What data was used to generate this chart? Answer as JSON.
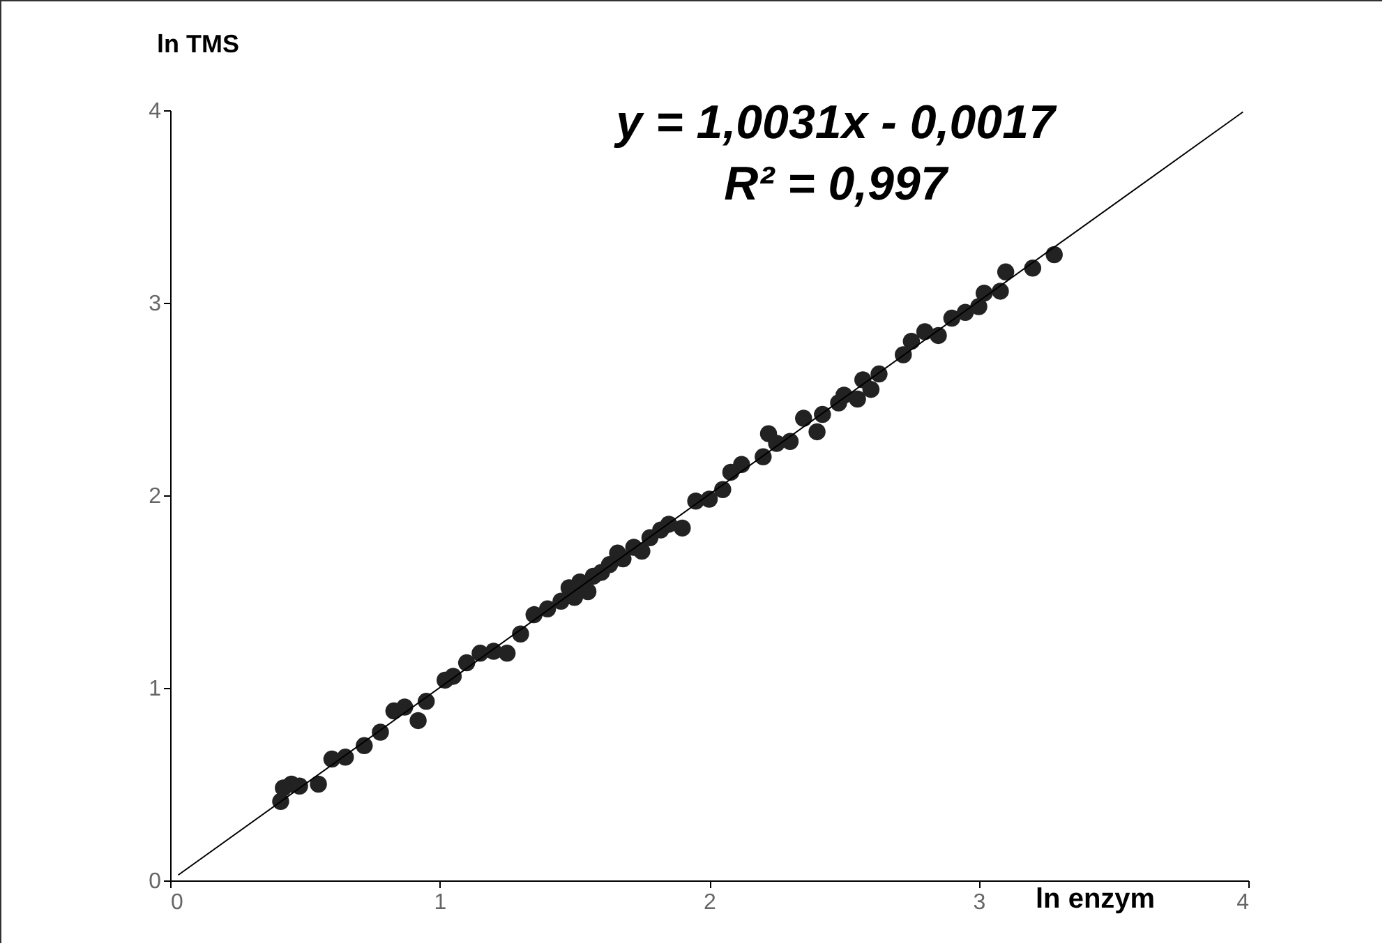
{
  "chart_data": {
    "type": "scatter",
    "xlabel": "ln enzym",
    "ylabel": "ln TMS",
    "annotations": [
      "y = 1,0031x - 0,0017",
      "R² = 0,997"
    ],
    "xlim": [
      0,
      4
    ],
    "ylim": [
      0,
      4
    ],
    "xticks": [
      0,
      1,
      2,
      3,
      4
    ],
    "yticks": [
      0,
      1,
      2,
      3,
      4
    ],
    "grid": false,
    "marker": "circle",
    "series": [
      {
        "color": "#222222",
        "x": [
          0.41,
          0.42,
          0.45,
          0.48,
          0.55,
          0.6,
          0.65,
          0.72,
          0.78,
          0.83,
          0.87,
          0.92,
          0.95,
          1.02,
          1.05,
          1.1,
          1.15,
          1.2,
          1.25,
          1.3,
          1.35,
          1.4,
          1.45,
          1.48,
          1.5,
          1.52,
          1.55,
          1.57,
          1.6,
          1.63,
          1.66,
          1.68,
          1.72,
          1.75,
          1.78,
          1.82,
          1.85,
          1.9,
          1.95,
          2.0,
          2.05,
          2.08,
          2.12,
          2.2,
          2.22,
          2.25,
          2.3,
          2.35,
          2.4,
          2.42,
          2.48,
          2.5,
          2.55,
          2.57,
          2.6,
          2.63,
          2.72,
          2.75,
          2.8,
          2.85,
          2.9,
          2.95,
          3.0,
          3.02,
          3.08,
          3.1,
          3.2,
          3.28
        ],
        "values": [
          0.41,
          0.48,
          0.5,
          0.49,
          0.5,
          0.63,
          0.64,
          0.7,
          0.77,
          0.88,
          0.9,
          0.83,
          0.93,
          1.04,
          1.06,
          1.13,
          1.18,
          1.19,
          1.18,
          1.28,
          1.38,
          1.41,
          1.45,
          1.52,
          1.47,
          1.55,
          1.5,
          1.58,
          1.6,
          1.64,
          1.7,
          1.67,
          1.73,
          1.71,
          1.78,
          1.82,
          1.85,
          1.83,
          1.97,
          1.98,
          2.03,
          2.12,
          2.16,
          2.2,
          2.32,
          2.27,
          2.28,
          2.4,
          2.33,
          2.42,
          2.48,
          2.52,
          2.5,
          2.6,
          2.55,
          2.63,
          2.73,
          2.8,
          2.85,
          2.83,
          2.92,
          2.95,
          2.98,
          3.05,
          3.06,
          3.16,
          3.18,
          3.25
        ]
      },
      {
        "type": "line",
        "color": "#000000",
        "line_style": "solid",
        "marker": "none",
        "x": [
          0.03,
          3.98
        ],
        "values": [
          0.028,
          3.991
        ]
      }
    ]
  }
}
